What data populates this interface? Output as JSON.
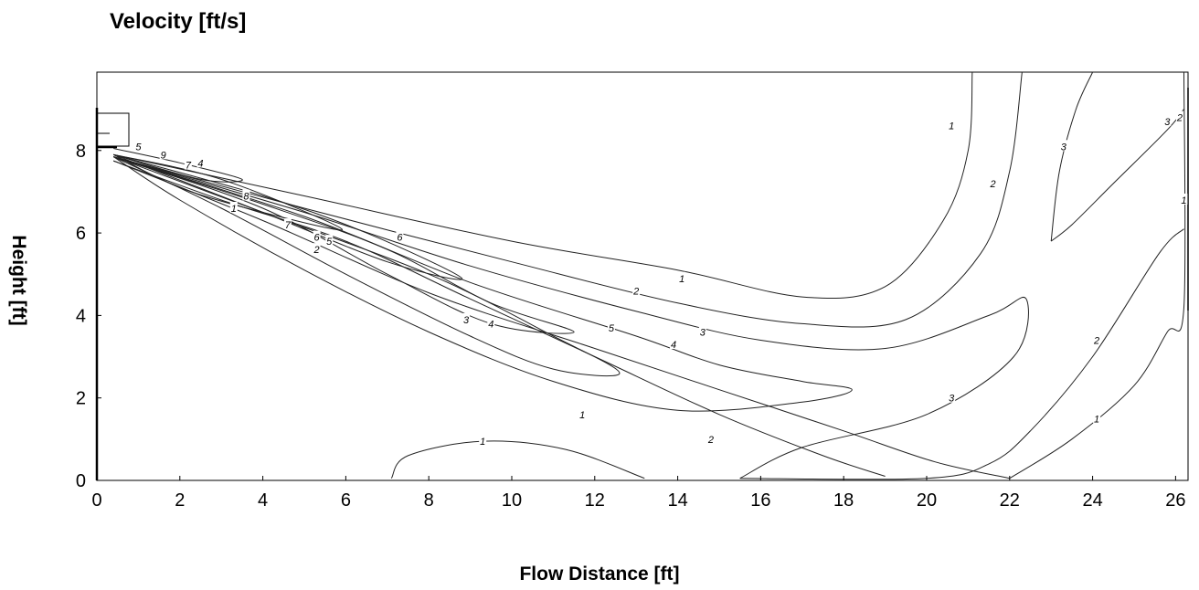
{
  "chart_data": {
    "type": "contour",
    "title": "Velocity [ft/s]",
    "xlabel": "Flow Distance [ft]",
    "ylabel": "Height [ft]",
    "xlim": [
      0,
      26.3
    ],
    "ylim": [
      0,
      9.9
    ],
    "xticks": [
      "0",
      "2",
      "4",
      "6",
      "8",
      "10",
      "12",
      "14",
      "16",
      "18",
      "20",
      "22",
      "24",
      "26"
    ],
    "yticks": [
      "0",
      "2",
      "4",
      "6",
      "8"
    ],
    "grid": false,
    "contour_levels": [
      1,
      2,
      3,
      4,
      5,
      6,
      7,
      8,
      9
    ],
    "contours": [
      {
        "level": "1",
        "points": [
          [
            0.4,
            7.75
          ],
          [
            4,
            6.3
          ],
          [
            8,
            4.55
          ],
          [
            12,
            3.2
          ],
          [
            15,
            2.2
          ],
          [
            18,
            1.2
          ],
          [
            20.2,
            0.45
          ],
          [
            22,
            0.05
          ]
        ]
      },
      {
        "level": "1",
        "points": [
          [
            0.4,
            7.9
          ],
          [
            5,
            6.9
          ],
          [
            10,
            5.8
          ],
          [
            14,
            5.1
          ],
          [
            17,
            4.45
          ],
          [
            19,
            4.7
          ],
          [
            20.4,
            6.3
          ],
          [
            21,
            8.0
          ],
          [
            21.1,
            9.9
          ]
        ]
      },
      {
        "level": "1",
        "points": [
          [
            7.1,
            0.05
          ],
          [
            7.5,
            0.6
          ],
          [
            9.3,
            0.95
          ],
          [
            11.3,
            0.75
          ],
          [
            13.2,
            0.05
          ]
        ]
      },
      {
        "level": "1",
        "points": [
          [
            22.0,
            0.05
          ],
          [
            23.5,
            1.0
          ],
          [
            25,
            2.3
          ],
          [
            25.8,
            3.6
          ],
          [
            26.2,
            4.2
          ],
          [
            26.2,
            9.9
          ]
        ]
      },
      {
        "level": "2",
        "points": [
          [
            0.4,
            7.75
          ],
          [
            3,
            6.8
          ],
          [
            6,
            5.8
          ],
          [
            9,
            4.4
          ],
          [
            12,
            3.0
          ],
          [
            15,
            1.6
          ],
          [
            17.5,
            0.6
          ],
          [
            19,
            0.1
          ]
        ]
      },
      {
        "level": "2",
        "points": [
          [
            0.4,
            7.85
          ],
          [
            5,
            6.6
          ],
          [
            10,
            5.3
          ],
          [
            14,
            4.3
          ],
          [
            17,
            3.8
          ],
          [
            19.5,
            3.9
          ],
          [
            21.3,
            5.5
          ],
          [
            22,
            7.5
          ],
          [
            22.3,
            9.9
          ]
        ]
      },
      {
        "level": "2",
        "points": [
          [
            15.5,
            0.05
          ],
          [
            20,
            0.05
          ],
          [
            21.5,
            0.4
          ],
          [
            22.5,
            1.2
          ],
          [
            24,
            3.0
          ],
          [
            25.6,
            5.5
          ],
          [
            26.2,
            6.1
          ]
        ]
      },
      {
        "level": "3",
        "points": [
          [
            0.4,
            7.85
          ],
          [
            5,
            6.5
          ],
          [
            9,
            5.2
          ],
          [
            13,
            4.1
          ],
          [
            16,
            3.4
          ],
          [
            19,
            3.2
          ],
          [
            21.5,
            4.0
          ],
          [
            22.4,
            4.4
          ],
          [
            22.1,
            3.0
          ],
          [
            20,
            1.6
          ],
          [
            17,
            0.8
          ],
          [
            15.5,
            0.05
          ]
        ]
      },
      {
        "level": "3",
        "points": [
          [
            23.0,
            5.8
          ],
          [
            23.5,
            6.2
          ],
          [
            24.5,
            7.2
          ],
          [
            25.8,
            8.5
          ],
          [
            26.2,
            9.0
          ]
        ]
      },
      {
        "level": "3",
        "points": [
          [
            23.0,
            5.8
          ],
          [
            23.2,
            7.5
          ],
          [
            23.6,
            9.0
          ],
          [
            24.0,
            9.9
          ]
        ]
      },
      {
        "level": "4",
        "points": [
          [
            0.4,
            7.85
          ],
          [
            5,
            6.4
          ],
          [
            9,
            4.8
          ],
          [
            13,
            3.5
          ],
          [
            15,
            2.8
          ],
          [
            17,
            2.4
          ],
          [
            18.2,
            2.2
          ],
          [
            17,
            1.9
          ],
          [
            14,
            1.7
          ],
          [
            11,
            2.4
          ],
          [
            8,
            3.6
          ],
          [
            5,
            5.1
          ],
          [
            2,
            6.8
          ],
          [
            0.4,
            7.85
          ]
        ]
      },
      {
        "level": "5",
        "points": [
          [
            0.4,
            7.85
          ],
          [
            4,
            6.5
          ],
          [
            8,
            5.0
          ],
          [
            11,
            3.5
          ],
          [
            12.6,
            2.6
          ],
          [
            11,
            2.7
          ],
          [
            9,
            3.5
          ],
          [
            6,
            5.0
          ],
          [
            3,
            6.6
          ],
          [
            0.4,
            7.85
          ]
        ]
      },
      {
        "level": "6",
        "points": [
          [
            0.4,
            7.85
          ],
          [
            4,
            6.7
          ],
          [
            7,
            5.6
          ],
          [
            9.5,
            4.3
          ],
          [
            11.5,
            3.6
          ],
          [
            9.5,
            3.8
          ],
          [
            7,
            5.0
          ],
          [
            4,
            6.6
          ],
          [
            0.4,
            7.85
          ]
        ]
      },
      {
        "level": "7",
        "points": [
          [
            0.4,
            7.9
          ],
          [
            4,
            6.9
          ],
          [
            6.5,
            6.0
          ],
          [
            8.8,
            4.9
          ],
          [
            7,
            5.3
          ],
          [
            4,
            6.5
          ],
          [
            0.4,
            7.9
          ]
        ]
      },
      {
        "level": "8",
        "points": [
          [
            0.4,
            7.9
          ],
          [
            3,
            7.3
          ],
          [
            5.9,
            6.1
          ],
          [
            4,
            6.5
          ],
          [
            2,
            7.1
          ],
          [
            0.4,
            7.9
          ]
        ]
      },
      {
        "level": "9",
        "points": [
          [
            0.4,
            8.05
          ],
          [
            2,
            7.7
          ],
          [
            3.5,
            7.3
          ],
          [
            2.5,
            7.3
          ],
          [
            0.4,
            7.9
          ]
        ]
      }
    ],
    "contour_labels": [
      {
        "text": "1",
        "x": 3.3,
        "y": 6.6
      },
      {
        "text": "2",
        "x": 5.3,
        "y": 5.6
      },
      {
        "text": "5",
        "x": 1.0,
        "y": 8.1
      },
      {
        "text": "9",
        "x": 1.6,
        "y": 7.9
      },
      {
        "text": "7",
        "x": 2.2,
        "y": 7.65
      },
      {
        "text": "4",
        "x": 2.5,
        "y": 7.7
      },
      {
        "text": "8",
        "x": 3.6,
        "y": 6.9
      },
      {
        "text": "7",
        "x": 4.6,
        "y": 6.2
      },
      {
        "text": "6",
        "x": 5.3,
        "y": 5.9
      },
      {
        "text": "5",
        "x": 5.6,
        "y": 5.8
      },
      {
        "text": "6",
        "x": 7.3,
        "y": 5.9
      },
      {
        "text": "3",
        "x": 8.9,
        "y": 3.9
      },
      {
        "text": "4",
        "x": 9.5,
        "y": 3.8
      },
      {
        "text": "1",
        "x": 11.7,
        "y": 1.6
      },
      {
        "text": "5",
        "x": 12.4,
        "y": 3.7
      },
      {
        "text": "4",
        "x": 13.9,
        "y": 3.3
      },
      {
        "text": "1",
        "x": 14.1,
        "y": 4.9
      },
      {
        "text": "2",
        "x": 13.0,
        "y": 4.6
      },
      {
        "text": "3",
        "x": 14.6,
        "y": 3.6
      },
      {
        "text": "2",
        "x": 14.8,
        "y": 1.0
      },
      {
        "text": "1",
        "x": 9.3,
        "y": 0.95
      },
      {
        "text": "1",
        "x": 20.6,
        "y": 8.6
      },
      {
        "text": "2",
        "x": 21.6,
        "y": 7.2
      },
      {
        "text": "3",
        "x": 23.3,
        "y": 8.1
      },
      {
        "text": "3",
        "x": 20.6,
        "y": 2.0
      },
      {
        "text": "2",
        "x": 24.1,
        "y": 3.4
      },
      {
        "text": "1",
        "x": 24.1,
        "y": 1.5
      },
      {
        "text": "3",
        "x": 25.8,
        "y": 8.7
      },
      {
        "text": "2",
        "x": 26.1,
        "y": 8.8
      },
      {
        "text": "1",
        "x": 26.2,
        "y": 6.8
      }
    ]
  }
}
